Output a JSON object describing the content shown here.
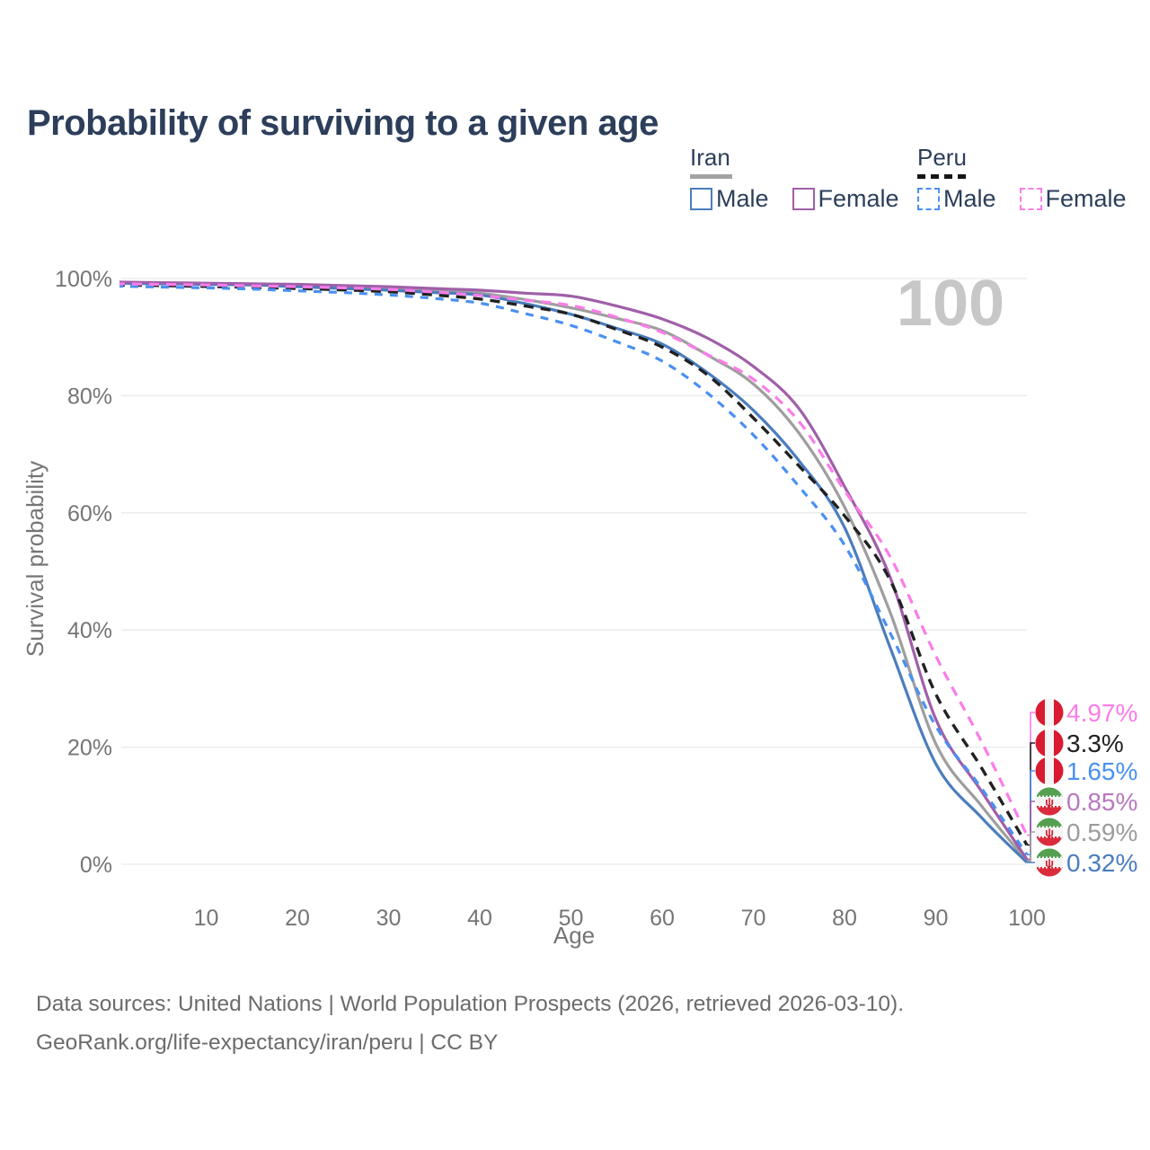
{
  "header": {
    "title": "Probability of surviving to a given age"
  },
  "legend": {
    "groups": [
      {
        "name": "Iran",
        "underline_style": "solid",
        "underline_color": "#a3a3a3",
        "underline_width": 47,
        "items": [
          {
            "label": "Male",
            "series": "iran-male",
            "color": "#4b7dbd",
            "dashed": false
          },
          {
            "label": "Female",
            "series": "iran-female",
            "color": "#a05fa8",
            "dashed": false
          }
        ]
      },
      {
        "name": "Peru",
        "underline_style": "dashed",
        "underline_color": "#151515",
        "underline_width": 55,
        "items": [
          {
            "label": "Male",
            "series": "peru-male",
            "color": "#4a90f2",
            "dashed": true
          },
          {
            "label": "Female",
            "series": "peru-female",
            "color": "#fb7ce8",
            "dashed": true
          }
        ]
      }
    ]
  },
  "chart_data": {
    "type": "line",
    "title": "Probability of surviving to a given age",
    "xlabel": "Age",
    "ylabel": "Survival probability",
    "xlim": [
      0,
      100
    ],
    "ylim": [
      0,
      100
    ],
    "x_ticks": [
      10,
      20,
      30,
      40,
      50,
      60,
      70,
      80,
      90,
      100
    ],
    "y_ticks": [
      0,
      20,
      40,
      60,
      80,
      100
    ],
    "y_tick_suffix": "%",
    "grid": "horizontal",
    "watermark": "100",
    "x": [
      0,
      5,
      10,
      15,
      20,
      25,
      30,
      35,
      40,
      45,
      50,
      55,
      60,
      65,
      70,
      75,
      80,
      85,
      90,
      95,
      100
    ],
    "series": [
      {
        "name": "iran-both",
        "country": "Iran",
        "sex": "Both",
        "color": "#9e9e9e",
        "dashed": false,
        "values": [
          99.3,
          99.2,
          99.1,
          99.0,
          98.8,
          98.5,
          98.2,
          97.9,
          97.5,
          96.4,
          95.0,
          93.2,
          91.1,
          86.9,
          82.0,
          73.6,
          61.0,
          43.0,
          20.6,
          10.0,
          0.59
        ],
        "end_label": {
          "text": "0.59%",
          "color": "#9c9c9c",
          "flag": "iran"
        }
      },
      {
        "name": "iran-male",
        "country": "Iran",
        "sex": "Male",
        "color": "#4b7dbd",
        "dashed": false,
        "values": [
          99.2,
          99.1,
          99.0,
          98.9,
          98.6,
          98.3,
          98.0,
          97.6,
          97.2,
          95.7,
          93.9,
          91.5,
          88.8,
          83.9,
          77.5,
          68.9,
          57.5,
          37.0,
          17.2,
          8.0,
          0.32
        ],
        "end_label": {
          "text": "0.32%",
          "color": "#4b7dbd",
          "flag": "iran"
        }
      },
      {
        "name": "iran-female",
        "country": "Iran",
        "sex": "Female",
        "color": "#a05fa8",
        "dashed": false,
        "values": [
          99.4,
          99.3,
          99.2,
          99.1,
          99.0,
          98.8,
          98.6,
          98.3,
          98.0,
          97.5,
          97.0,
          95.3,
          93.1,
          89.8,
          85.0,
          77.8,
          64.5,
          49.0,
          24.8,
          12.5,
          0.85
        ],
        "end_label": {
          "text": "0.85%",
          "color": "#b878c0",
          "flag": "iran"
        }
      },
      {
        "name": "peru-both",
        "country": "Peru",
        "sex": "Both",
        "color": "#212121",
        "dashed": true,
        "values": [
          98.9,
          98.8,
          98.65,
          98.5,
          98.3,
          98.05,
          97.75,
          97.2,
          96.5,
          95.3,
          93.9,
          91.3,
          88.3,
          83.5,
          76.2,
          68.0,
          59.5,
          48.5,
          29.1,
          16.5,
          3.3
        ],
        "end_label": {
          "text": "3.3%",
          "color": "#212121",
          "flag": "peru"
        }
      },
      {
        "name": "peru-male",
        "country": "Peru",
        "sex": "Male",
        "color": "#4a90f2",
        "dashed": true,
        "values": [
          98.7,
          98.55,
          98.4,
          98.2,
          97.9,
          97.6,
          97.2,
          96.6,
          95.8,
          94.0,
          92.0,
          89.2,
          85.9,
          80.4,
          73.3,
          64.5,
          54.5,
          39.5,
          23.6,
          13.0,
          1.65
        ],
        "end_label": {
          "text": "1.65%",
          "color": "#4a90f2",
          "flag": "peru"
        }
      },
      {
        "name": "peru-female",
        "country": "Peru",
        "sex": "Female",
        "color": "#fb7ce8",
        "dashed": true,
        "values": [
          99.1,
          99.0,
          98.9,
          98.75,
          98.6,
          98.4,
          98.15,
          97.7,
          97.1,
          96.3,
          95.4,
          93.4,
          90.8,
          87.0,
          82.8,
          75.6,
          63.8,
          52.5,
          35.6,
          21.0,
          4.97
        ],
        "end_label": {
          "text": "4.97%",
          "color": "#fb7ce8",
          "flag": "peru"
        }
      }
    ]
  },
  "footer": {
    "line1": "Data sources: United Nations | World Population Prospects (2026, retrieved 2026-03-10).",
    "line2": "GeoRank.org/life-expectancy/iran/peru | CC BY"
  }
}
